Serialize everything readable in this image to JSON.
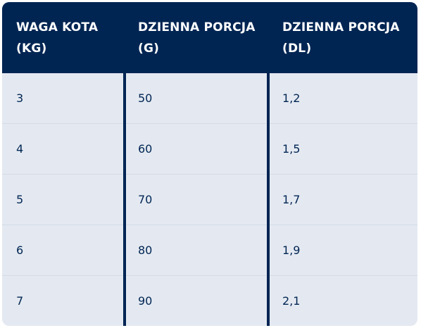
{
  "table": {
    "headers": [
      {
        "line1": "WAGA KOTA",
        "line2": "(KG)"
      },
      {
        "line1": "DZIENNA PORCJA",
        "line2": "(G)"
      },
      {
        "line1": "DZIENNA PORCJA",
        "line2": "(DL)"
      }
    ],
    "rows": [
      [
        "3",
        "50",
        "1,2"
      ],
      [
        "4",
        "60",
        "1,5"
      ],
      [
        "5",
        "70",
        "1,7"
      ],
      [
        "6",
        "80",
        "1,9"
      ],
      [
        "7",
        "90",
        "2,1"
      ]
    ]
  },
  "colors": {
    "header_bg": "#002553",
    "body_bg": "#e4e9f1",
    "text": "#002553"
  }
}
